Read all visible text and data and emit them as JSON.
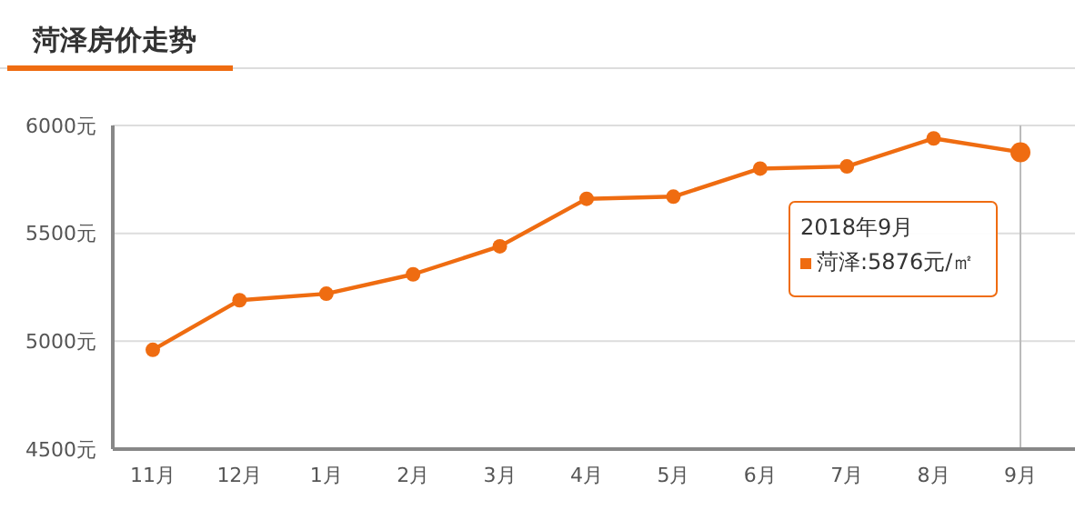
{
  "chart_data": {
    "type": "line",
    "title": "菏泽房价走势",
    "categories": [
      "11月",
      "12月",
      "1月",
      "2月",
      "3月",
      "4月",
      "5月",
      "6月",
      "7月",
      "8月",
      "9月"
    ],
    "values": [
      4960,
      5190,
      5220,
      5310,
      5440,
      5660,
      5670,
      5800,
      5810,
      5940,
      5876
    ],
    "color": "#ef6c11",
    "marker": "circle",
    "grid": "y",
    "ylim": [
      4500,
      6000
    ],
    "yticks": [
      {
        "value": 4500,
        "label": "4500元"
      },
      {
        "value": 5000,
        "label": "5000元"
      },
      {
        "value": 5500,
        "label": "5500元"
      },
      {
        "value": 6000,
        "label": "6000元"
      }
    ],
    "ref_lines": [
      {
        "axis": "x",
        "value": "9月",
        "color": "#bbbbbb"
      }
    ],
    "annotations": [
      "2018年9月",
      "菏泽:5876元/㎡"
    ]
  }
}
